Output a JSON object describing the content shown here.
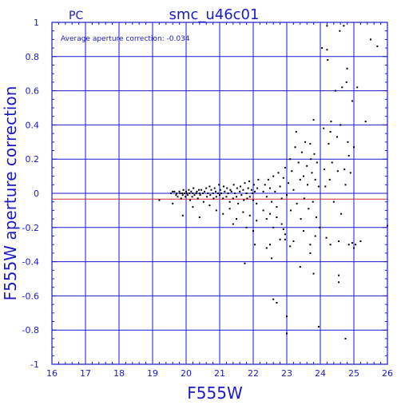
{
  "chart_data": {
    "type": "scatter",
    "corner_label": "PC",
    "title": "smc_u46c01",
    "annotation": "Average aperture correction: -0.034",
    "xlabel": "F555W",
    "ylabel": "F555W aperture correction",
    "xlim": [
      16,
      26
    ],
    "ylim": [
      -1,
      1
    ],
    "x_ticks": [
      "16",
      "17",
      "18",
      "19",
      "20",
      "21",
      "22",
      "23",
      "24",
      "25",
      "26"
    ],
    "y_ticks": [
      "1",
      "0.8",
      "0.6",
      "0.4",
      "0.2",
      "0",
      "-0.2",
      "-0.4",
      "-0.6",
      "-0.8",
      "-1"
    ],
    "grid": true,
    "zero_line": 0,
    "average_line": -0.034,
    "colors": {
      "axes": "#1a1acd",
      "grid": "#1a1acd",
      "average_line": "#c83232",
      "points": "#000000"
    },
    "points": [
      [
        19.2,
        -0.04
      ],
      [
        19.55,
        0.0
      ],
      [
        19.6,
        0.01
      ],
      [
        19.65,
        0.01
      ],
      [
        19.7,
        -0.01
      ],
      [
        19.72,
        0.0
      ],
      [
        19.75,
        -0.02
      ],
      [
        19.8,
        0.01
      ],
      [
        19.82,
        0.0
      ],
      [
        19.85,
        -0.03
      ],
      [
        19.88,
        0.0
      ],
      [
        19.9,
        -0.01
      ],
      [
        19.92,
        0.02
      ],
      [
        19.95,
        0.0
      ],
      [
        19.98,
        -0.02
      ],
      [
        20.0,
        0.01
      ],
      [
        20.02,
        0.0
      ],
      [
        20.05,
        -0.01
      ],
      [
        20.08,
        0.02
      ],
      [
        20.1,
        0.0
      ],
      [
        20.12,
        -0.04
      ],
      [
        20.15,
        0.01
      ],
      [
        20.18,
        -0.02
      ],
      [
        20.2,
        0.0
      ],
      [
        20.22,
        0.03
      ],
      [
        20.25,
        -0.01
      ],
      [
        20.3,
        0.0
      ],
      [
        20.32,
        0.01
      ],
      [
        20.35,
        -0.03
      ],
      [
        20.38,
        0.02
      ],
      [
        20.4,
        0.0
      ],
      [
        20.42,
        -0.01
      ],
      [
        20.45,
        0.02
      ],
      [
        20.5,
        0.0
      ],
      [
        20.52,
        -0.05
      ],
      [
        20.55,
        0.01
      ],
      [
        20.6,
        0.03
      ],
      [
        20.62,
        -0.02
      ],
      [
        20.65,
        0.0
      ],
      [
        20.7,
        0.04
      ],
      [
        20.72,
        -0.01
      ],
      [
        20.75,
        0.02
      ],
      [
        20.8,
        0.0
      ],
      [
        20.82,
        -0.03
      ],
      [
        20.85,
        0.03
      ],
      [
        20.88,
        0.01
      ],
      [
        20.9,
        -0.02
      ],
      [
        20.95,
        0.0
      ],
      [
        20.98,
        0.05
      ],
      [
        21.0,
        -0.01
      ],
      [
        21.02,
        0.02
      ],
      [
        21.05,
        0.0
      ],
      [
        21.1,
        -0.03
      ],
      [
        21.12,
        0.04
      ],
      [
        21.15,
        0.01
      ],
      [
        21.2,
        -0.02
      ],
      [
        21.22,
        0.03
      ],
      [
        21.25,
        0.0
      ],
      [
        21.3,
        -0.05
      ],
      [
        21.32,
        0.02
      ],
      [
        21.35,
        0.01
      ],
      [
        21.4,
        -0.03
      ],
      [
        21.42,
        0.05
      ],
      [
        21.45,
        0.0
      ],
      [
        21.5,
        -0.02
      ],
      [
        21.52,
        0.03
      ],
      [
        21.55,
        -0.06
      ],
      [
        21.6,
        0.01
      ],
      [
        21.62,
        0.04
      ],
      [
        21.65,
        -0.01
      ],
      [
        21.7,
        0.02
      ],
      [
        21.72,
        -0.04
      ],
      [
        21.75,
        0.06
      ],
      [
        21.8,
        0.0
      ],
      [
        21.82,
        -0.03
      ],
      [
        21.85,
        0.03
      ],
      [
        21.88,
        0.07
      ],
      [
        21.9,
        -0.02
      ],
      [
        21.95,
        0.02
      ],
      [
        21.98,
        0.0
      ],
      [
        22.0,
        -0.04
      ],
      [
        22.02,
        0.05
      ],
      [
        22.05,
        0.01
      ],
      [
        22.1,
        -0.06
      ],
      [
        22.12,
        0.03
      ],
      [
        22.15,
        0.08
      ],
      [
        19.6,
        -0.06
      ],
      [
        19.9,
        -0.13
      ],
      [
        20.2,
        -0.08
      ],
      [
        20.4,
        -0.14
      ],
      [
        20.7,
        -0.07
      ],
      [
        20.9,
        -0.1
      ],
      [
        21.1,
        -0.12
      ],
      [
        21.3,
        -0.09
      ],
      [
        21.5,
        -0.15
      ],
      [
        21.7,
        -0.11
      ],
      [
        21.9,
        -0.13
      ],
      [
        22.1,
        -0.16
      ],
      [
        21.4,
        -0.18
      ],
      [
        21.8,
        -0.2
      ],
      [
        22.0,
        -0.22
      ],
      [
        21.75,
        -0.41
      ],
      [
        22.05,
        -0.3
      ],
      [
        22.4,
        -0.32
      ],
      [
        22.5,
        -0.3
      ],
      [
        22.55,
        -0.38
      ],
      [
        22.8,
        -0.27
      ],
      [
        22.9,
        -0.21
      ],
      [
        22.3,
        0.01
      ],
      [
        22.35,
        0.05
      ],
      [
        22.4,
        -0.02
      ],
      [
        22.45,
        0.08
      ],
      [
        22.5,
        0.03
      ],
      [
        22.55,
        -0.05
      ],
      [
        22.6,
        0.1
      ],
      [
        22.65,
        0.01
      ],
      [
        22.7,
        -0.08
      ],
      [
        22.75,
        0.12
      ],
      [
        22.8,
        0.04
      ],
      [
        22.85,
        -0.03
      ],
      [
        22.9,
        0.09
      ],
      [
        22.95,
        0.15
      ],
      [
        23.0,
        -0.01
      ],
      [
        22.3,
        -0.1
      ],
      [
        22.4,
        -0.15
      ],
      [
        22.5,
        -0.12
      ],
      [
        22.6,
        -0.2
      ],
      [
        22.7,
        -0.14
      ],
      [
        22.85,
        -0.18
      ],
      [
        22.95,
        -0.24
      ],
      [
        23.05,
        0.06
      ],
      [
        23.1,
        0.2
      ],
      [
        23.12,
        -0.1
      ],
      [
        23.15,
        0.13
      ],
      [
        23.2,
        0.02
      ],
      [
        23.25,
        0.27
      ],
      [
        23.28,
        0.36
      ],
      [
        23.3,
        -0.06
      ],
      [
        23.35,
        0.18
      ],
      [
        23.4,
        0.08
      ],
      [
        23.42,
        -0.15
      ],
      [
        23.45,
        0.24
      ],
      [
        23.5,
        0.1
      ],
      [
        23.52,
        -0.03
      ],
      [
        23.55,
        0.3
      ],
      [
        23.6,
        0.16
      ],
      [
        23.62,
        0.05
      ],
      [
        23.65,
        -0.09
      ],
      [
        23.7,
        0.29
      ],
      [
        23.72,
        0.2
      ],
      [
        23.75,
        0.12
      ],
      [
        23.78,
        -0.05
      ],
      [
        23.8,
        0.43
      ],
      [
        23.82,
        0.23
      ],
      [
        23.85,
        0.08
      ],
      [
        23.88,
        -0.14
      ],
      [
        23.9,
        0.18
      ],
      [
        23.95,
        0.04
      ],
      [
        23.98,
        -0.2
      ],
      [
        23.0,
        -0.82
      ],
      [
        23.0,
        -0.72
      ],
      [
        23.1,
        -0.31
      ],
      [
        23.4,
        -0.43
      ],
      [
        23.7,
        -0.35
      ],
      [
        23.8,
        -0.47
      ],
      [
        23.95,
        -0.78
      ],
      [
        22.6,
        -0.62
      ],
      [
        22.7,
        -0.64
      ],
      [
        22.95,
        -0.27
      ],
      [
        23.2,
        -0.28
      ],
      [
        23.5,
        -0.22
      ],
      [
        23.7,
        -0.3
      ],
      [
        23.85,
        -0.25
      ],
      [
        24.05,
        0.85
      ],
      [
        24.1,
        0.38
      ],
      [
        24.12,
        0.14
      ],
      [
        24.15,
        0.04
      ],
      [
        24.18,
        -0.26
      ],
      [
        24.2,
        0.84
      ],
      [
        24.22,
        0.78
      ],
      [
        24.25,
        0.29
      ],
      [
        24.28,
        0.08
      ],
      [
        24.3,
        -0.3
      ],
      [
        24.32,
        0.42
      ],
      [
        24.35,
        0.18
      ],
      [
        24.4,
        -0.05
      ],
      [
        24.45,
        0.6
      ],
      [
        24.5,
        0.33
      ],
      [
        24.52,
        0.13
      ],
      [
        24.55,
        -0.28
      ],
      [
        24.58,
        0.95
      ],
      [
        24.6,
        0.4
      ],
      [
        24.62,
        -0.12
      ],
      [
        24.65,
        0.62
      ],
      [
        24.7,
        0.98
      ],
      [
        24.72,
        0.14
      ],
      [
        24.75,
        -0.85
      ],
      [
        24.78,
        0.65
      ],
      [
        24.8,
        0.73
      ],
      [
        24.82,
        0.3
      ],
      [
        24.85,
        -0.3
      ],
      [
        24.9,
        0.12
      ],
      [
        24.95,
        0.54
      ],
      [
        25.0,
        0.27
      ],
      [
        25.05,
        -0.3
      ],
      [
        25.1,
        0.62
      ],
      [
        25.2,
        -0.28
      ],
      [
        25.35,
        0.42
      ],
      [
        25.5,
        0.9
      ],
      [
        25.7,
        0.86
      ],
      [
        24.55,
        -0.48
      ],
      [
        24.55,
        -0.52
      ],
      [
        24.85,
        0.22
      ],
      [
        24.95,
        -0.29
      ],
      [
        25.0,
        -0.32
      ],
      [
        24.2,
        0.98
      ],
      [
        24.3,
        0.36
      ],
      [
        24.75,
        0.05
      ],
      [
        26.0,
        -0.19
      ]
    ]
  }
}
